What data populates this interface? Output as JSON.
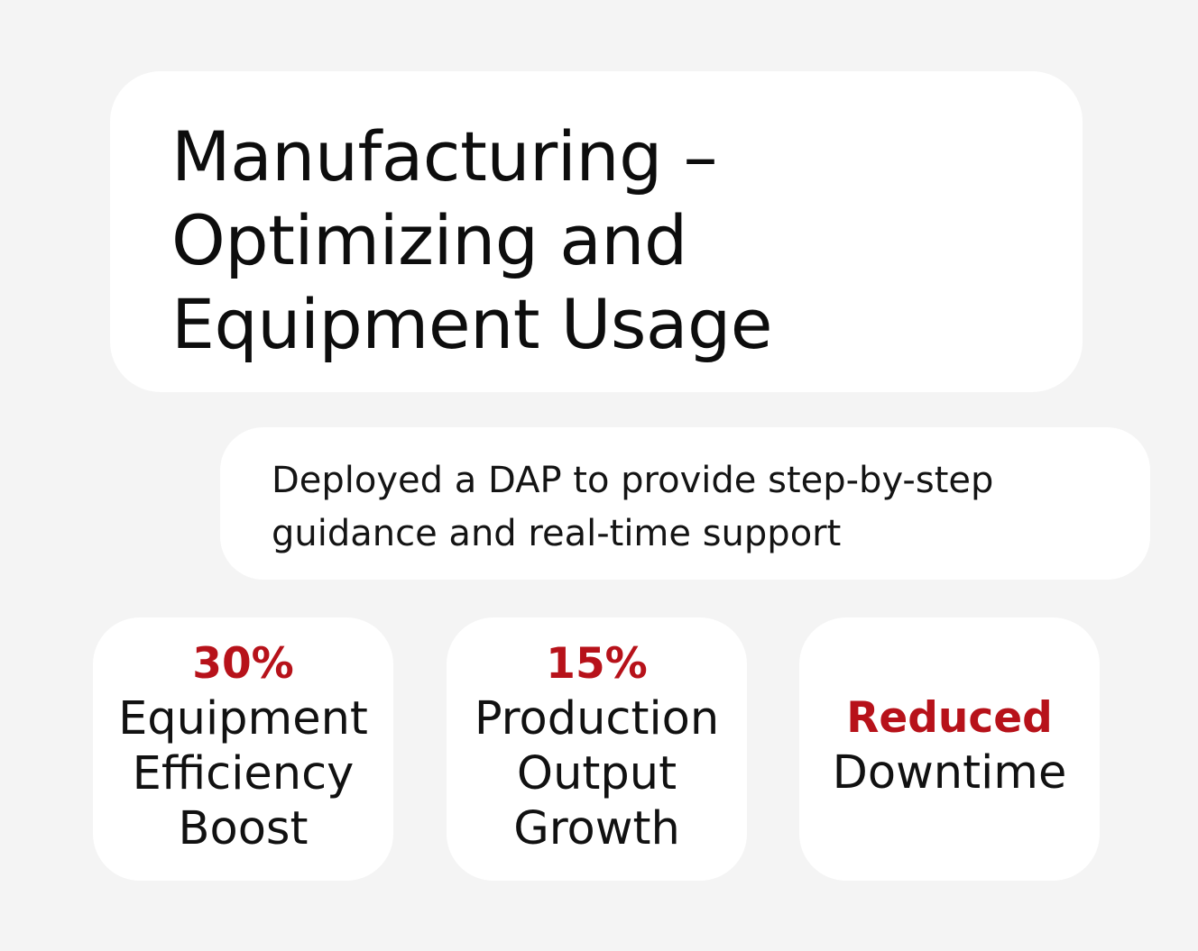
{
  "title": {
    "lines": [
      "Manufacturing –",
      "Optimizing and",
      "Equipment Usage"
    ]
  },
  "description": {
    "lines": [
      "Deployed a DAP to provide step-by-step",
      "guidance and real-time support"
    ]
  },
  "stats": [
    {
      "value": "30%",
      "label_lines": [
        "Equipment",
        "Efficiency",
        "Boost"
      ]
    },
    {
      "value": "15%",
      "label_lines": [
        "Production",
        "Output",
        "Growth"
      ]
    },
    {
      "value": "Reduced",
      "label_lines": [
        "Downtime"
      ]
    }
  ],
  "colors": {
    "background": "#f4f4f4",
    "card": "#ffffff",
    "accent": "#b7121a",
    "text": "#111111"
  }
}
